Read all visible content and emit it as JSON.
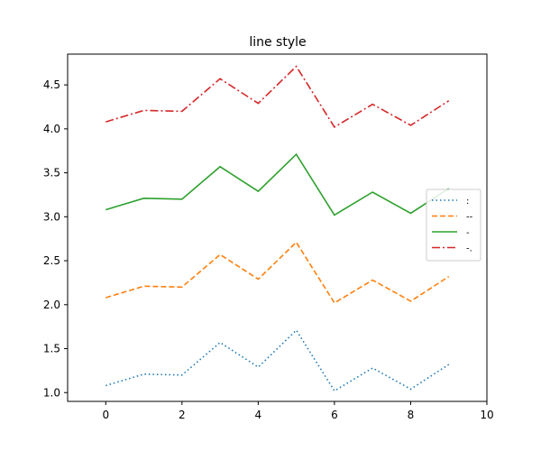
{
  "chart_data": {
    "type": "line",
    "title": "line style",
    "xlabel": "",
    "ylabel": "",
    "xlim": [
      -1,
      10
    ],
    "ylim": [
      0.9,
      4.85
    ],
    "xticks": [
      0,
      2,
      4,
      6,
      8,
      10
    ],
    "yticks": [
      1.0,
      1.5,
      2.0,
      2.5,
      3.0,
      3.5,
      4.0,
      4.5
    ],
    "ytick_labels": [
      "1.0",
      "1.5",
      "2.0",
      "2.5",
      "3.0",
      "3.5",
      "4.0",
      "4.5"
    ],
    "grid": false,
    "legend_position": "center-right",
    "x": [
      0,
      1,
      2,
      3,
      4,
      5,
      6,
      7,
      8,
      9
    ],
    "series": [
      {
        "name": ":",
        "style": "dotted",
        "color": "#1f77b4",
        "values": [
          1.08,
          1.21,
          1.2,
          1.57,
          1.29,
          1.71,
          1.02,
          1.28,
          1.04,
          1.32
        ]
      },
      {
        "name": "--",
        "style": "dashed",
        "color": "#ff7f0e",
        "values": [
          2.08,
          2.21,
          2.2,
          2.57,
          2.29,
          2.71,
          2.02,
          2.28,
          2.04,
          2.32
        ]
      },
      {
        "name": "-",
        "style": "solid",
        "color": "#2ca02c",
        "values": [
          3.08,
          3.21,
          3.2,
          3.57,
          3.29,
          3.71,
          3.02,
          3.28,
          3.04,
          3.32
        ]
      },
      {
        "name": "-.",
        "style": "dashdot",
        "color": "#d62728",
        "values": [
          4.08,
          4.21,
          4.2,
          4.57,
          4.29,
          4.71,
          4.02,
          4.28,
          4.04,
          4.32
        ]
      }
    ]
  }
}
